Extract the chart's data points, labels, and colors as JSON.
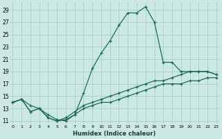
{
  "xlabel": "Humidex (Indice chaleur)",
  "bg_color": "#cce8e4",
  "grid_color": "#aaccca",
  "line_color": "#1a6b5a",
  "line1_x": [
    0,
    1,
    2,
    3,
    4,
    5,
    6,
    7,
    8,
    9,
    10,
    11,
    12,
    13,
    14,
    15,
    16,
    17,
    18,
    19,
    20,
    21,
    22,
    23
  ],
  "line1_y": [
    14.0,
    14.5,
    13.5,
    13.0,
    12.0,
    11.2,
    11.0,
    12.0,
    15.5,
    19.5,
    22.0,
    24.0,
    26.5,
    28.5,
    28.5,
    29.5,
    27.0,
    20.5,
    20.5,
    19.0,
    19.0,
    19.0,
    19.0,
    18.5
  ],
  "line2_x": [
    0,
    1,
    2,
    3,
    4,
    5,
    6,
    7,
    8,
    9,
    10,
    11,
    12,
    13,
    14,
    15,
    16,
    17,
    18,
    19,
    20,
    21,
    22,
    23
  ],
  "line2_y": [
    14.0,
    14.5,
    12.5,
    13.0,
    11.5,
    11.0,
    11.5,
    12.5,
    13.5,
    14.0,
    14.5,
    15.0,
    15.5,
    16.0,
    16.5,
    17.0,
    17.5,
    17.5,
    18.0,
    18.5,
    19.0,
    19.0,
    19.0,
    18.5
  ],
  "line3_x": [
    0,
    1,
    2,
    3,
    4,
    5,
    6,
    7,
    8,
    9,
    10,
    11,
    12,
    13,
    14,
    15,
    16,
    17,
    18,
    19,
    20,
    21,
    22,
    23
  ],
  "line3_y": [
    14.0,
    14.5,
    12.5,
    13.0,
    11.5,
    11.0,
    11.2,
    12.0,
    13.0,
    13.5,
    14.0,
    14.0,
    14.5,
    15.0,
    15.5,
    16.0,
    16.5,
    17.0,
    17.0,
    17.0,
    17.5,
    17.5,
    18.0,
    18.0
  ],
  "yticks": [
    11,
    13,
    15,
    17,
    19,
    21,
    23,
    25,
    27,
    29
  ],
  "xticks": [
    0,
    1,
    2,
    3,
    4,
    5,
    6,
    7,
    8,
    9,
    10,
    11,
    12,
    13,
    14,
    15,
    16,
    17,
    18,
    19,
    20,
    21,
    22,
    23
  ],
  "xlim": [
    -0.3,
    23.3
  ],
  "ylim": [
    10.5,
    30.2
  ]
}
